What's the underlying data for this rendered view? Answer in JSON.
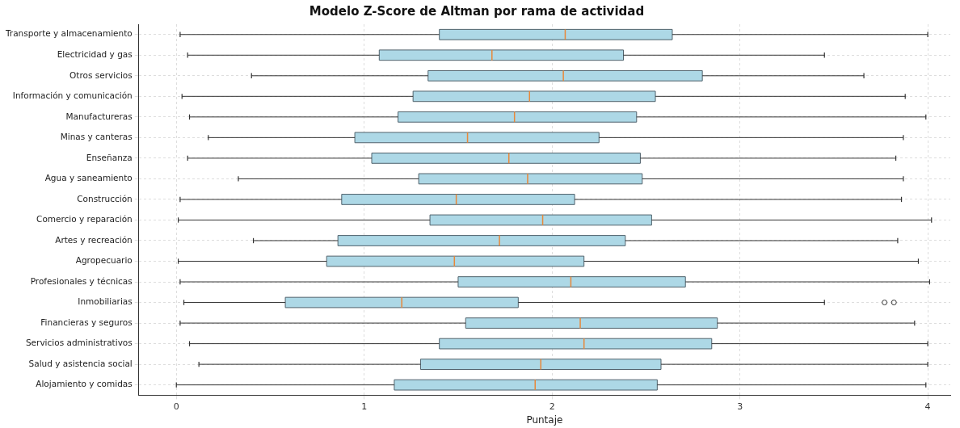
{
  "chart_data": {
    "type": "box",
    "title": "Modelo Z-Score de Altman por rama de actividad",
    "xlabel": "Puntaje",
    "orientation": "horizontal",
    "grid": true,
    "legend": false,
    "categories": [
      "Transporte y almacenamiento",
      "Electricidad y gas",
      "Otros servicios",
      "Información y comunicación",
      "Manufactureras",
      "Minas y canteras",
      "Enseñanza",
      "Agua y saneamiento",
      "Construcción",
      "Comercio y reparación",
      "Artes y recreación",
      "Agropecuario",
      "Profesionales y técnicas",
      "Inmobiliarias",
      "Financieras y seguros",
      "Servicios administrativos",
      "Salud y asistencia social",
      "Alojamiento y comidas"
    ],
    "xlim": [
      -0.2,
      4.12
    ],
    "xticks": [
      0,
      1,
      2,
      3,
      4
    ],
    "series": [
      {
        "color": "#add8e6",
        "boxes": [
          {
            "low": 0.02,
            "q1": 1.4,
            "median": 2.07,
            "q3": 2.64,
            "high": 4.0
          },
          {
            "low": 0.06,
            "q1": 1.08,
            "median": 1.68,
            "q3": 2.38,
            "high": 3.45
          },
          {
            "low": 0.4,
            "q1": 1.34,
            "median": 2.06,
            "q3": 2.8,
            "high": 3.66
          },
          {
            "low": 0.03,
            "q1": 1.26,
            "median": 1.88,
            "q3": 2.55,
            "high": 3.88
          },
          {
            "low": 0.07,
            "q1": 1.18,
            "median": 1.8,
            "q3": 2.45,
            "high": 3.99
          },
          {
            "low": 0.17,
            "q1": 0.95,
            "median": 1.55,
            "q3": 2.25,
            "high": 3.87
          },
          {
            "low": 0.06,
            "q1": 1.04,
            "median": 1.77,
            "q3": 2.47,
            "high": 3.83
          },
          {
            "low": 0.33,
            "q1": 1.29,
            "median": 1.87,
            "q3": 2.48,
            "high": 3.87
          },
          {
            "low": 0.02,
            "q1": 0.88,
            "median": 1.49,
            "q3": 2.12,
            "high": 3.86
          },
          {
            "low": 0.01,
            "q1": 1.35,
            "median": 1.95,
            "q3": 2.53,
            "high": 4.02
          },
          {
            "low": 0.41,
            "q1": 0.86,
            "median": 1.72,
            "q3": 2.39,
            "high": 3.84
          },
          {
            "low": 0.01,
            "q1": 0.8,
            "median": 1.48,
            "q3": 2.17,
            "high": 3.95
          },
          {
            "low": 0.02,
            "q1": 1.5,
            "median": 2.1,
            "q3": 2.71,
            "high": 4.01
          },
          {
            "low": 0.04,
            "q1": 0.58,
            "median": 1.2,
            "q3": 1.82,
            "high": 3.45,
            "outliers": [
              3.77,
              3.82
            ]
          },
          {
            "low": 0.02,
            "q1": 1.54,
            "median": 2.15,
            "q3": 2.88,
            "high": 3.93
          },
          {
            "low": 0.07,
            "q1": 1.4,
            "median": 2.17,
            "q3": 2.85,
            "high": 4.0
          },
          {
            "low": 0.12,
            "q1": 1.3,
            "median": 1.94,
            "q3": 2.58,
            "high": 4.0
          },
          {
            "low": 0.0,
            "q1": 1.16,
            "median": 1.91,
            "q3": 2.56,
            "high": 3.99
          }
        ]
      }
    ]
  }
}
